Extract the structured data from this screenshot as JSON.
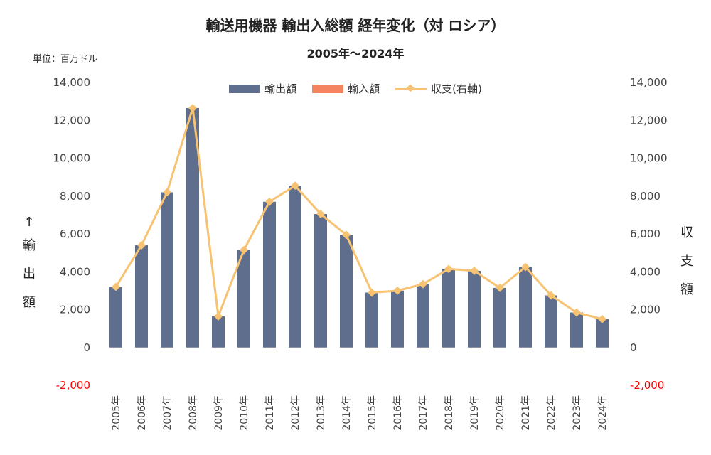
{
  "header": {
    "title": "輸送用機器 輸出入総額 経年変化（対 ロシア）",
    "subtitle": "2005年～2024年",
    "unit": "単位：百万ドル"
  },
  "left_axis_label": [
    "↑",
    "輸",
    "出",
    "額"
  ],
  "right_axis_label": [
    "収",
    "支",
    "額"
  ],
  "legend": {
    "export": "輸出額",
    "import": "輸入額",
    "balance": "収支(右軸)"
  },
  "colors": {
    "export": "#5f6e8c",
    "import": "#f4845f",
    "balance": "#f7c372",
    "negative_tick": "#ff0000"
  },
  "chart_data": {
    "type": "bar",
    "categories": [
      "2005年",
      "2006年",
      "2007年",
      "2008年",
      "2009年",
      "2010年",
      "2011年",
      "2012年",
      "2013年",
      "2014年",
      "2015年",
      "2016年",
      "2017年",
      "2018年",
      "2019年",
      "2020年",
      "2021年",
      "2022年",
      "2023年",
      "2024年"
    ],
    "series": [
      {
        "name": "輸出額",
        "type": "bar",
        "axis": "left",
        "values": [
          3200,
          5400,
          8200,
          12650,
          1650,
          5150,
          7700,
          8550,
          7050,
          5950,
          2900,
          3000,
          3350,
          4150,
          4050,
          3150,
          4250,
          2750,
          1850,
          1500
        ]
      },
      {
        "name": "輸入額",
        "type": "bar",
        "axis": "left",
        "values": [
          0,
          0,
          0,
          0,
          0,
          0,
          0,
          0,
          0,
          0,
          0,
          0,
          0,
          0,
          0,
          0,
          0,
          0,
          0,
          0
        ]
      },
      {
        "name": "収支(右軸)",
        "type": "line",
        "axis": "right",
        "values": [
          3200,
          5400,
          8200,
          12650,
          1650,
          5150,
          7700,
          8550,
          7050,
          5950,
          2900,
          3000,
          3350,
          4150,
          4050,
          3150,
          4250,
          2750,
          1850,
          1500
        ]
      }
    ],
    "ylim": [
      -2000,
      14000
    ],
    "y2lim": [
      -2000,
      14000
    ],
    "yticks": [
      "-2,000",
      "0",
      "2,000",
      "4,000",
      "6,000",
      "8,000",
      "10,000",
      "12,000",
      "14,000"
    ],
    "ytick_values": [
      -2000,
      0,
      2000,
      4000,
      6000,
      8000,
      10000,
      12000,
      14000
    ],
    "grid": false,
    "legend_position": "top-center"
  }
}
